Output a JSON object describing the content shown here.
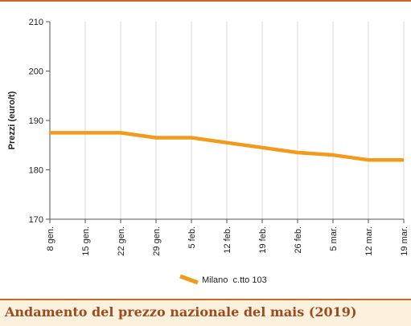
{
  "colors": {
    "accent": "#c8692a",
    "series": "#f39a1a",
    "footer_bg": "#fbf1dc",
    "title_text": "#9c4a1f"
  },
  "caption": "Andamento del prezzo nazionale del mais (2019)",
  "chart_data": {
    "type": "line",
    "title": "",
    "ylabel": "Prezzi (euro/t)",
    "xlabel": "",
    "ylim": [
      170,
      210
    ],
    "yticks": [
      170,
      180,
      190,
      200,
      210
    ],
    "grid": "vertical",
    "legend_position": "bottom-center",
    "categories": [
      "8 gen.",
      "15 gen.",
      "22 gen.",
      "29 gen.",
      "5 feb.",
      "12 feb.",
      "19 feb.",
      "26 feb.",
      "5 mar.",
      "12 mar.",
      "19 mar."
    ],
    "series": [
      {
        "name": "Milano  c.tto 103",
        "values": [
          187.5,
          187.5,
          187.5,
          186.5,
          186.5,
          185.5,
          184.5,
          183.5,
          183.0,
          182.0,
          182.0
        ]
      }
    ]
  }
}
